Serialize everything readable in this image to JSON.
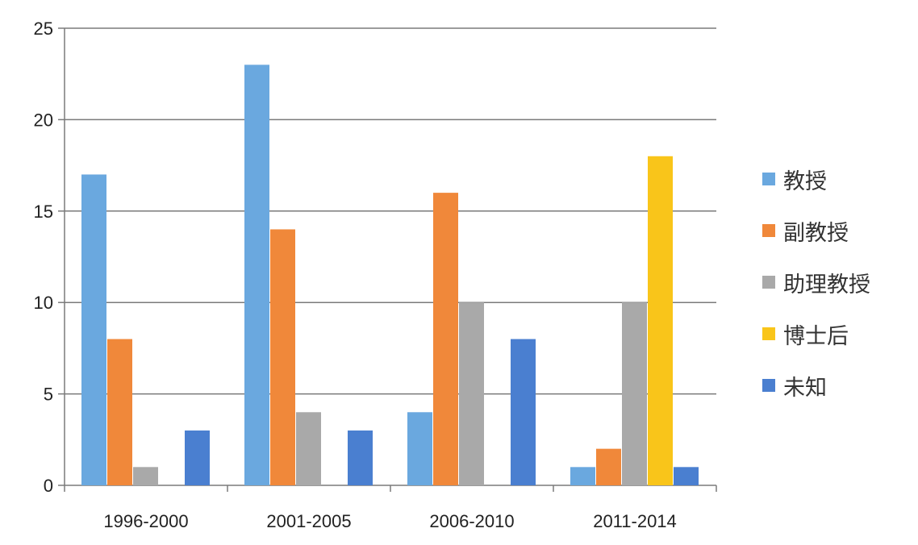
{
  "chart_data": {
    "type": "bar",
    "categories": [
      "1996-2000",
      "2001-2005",
      "2006-2010",
      "2011-2014"
    ],
    "series": [
      {
        "name": "教授",
        "color": "#6aa8df",
        "values": [
          17,
          23,
          4,
          1
        ]
      },
      {
        "name": "副教授",
        "color": "#f0883a",
        "values": [
          8,
          14,
          16,
          2
        ]
      },
      {
        "name": "助理教授",
        "color": "#a9a9a9",
        "values": [
          1,
          4,
          10,
          10
        ]
      },
      {
        "name": "博士后",
        "color": "#f9c51a",
        "values": [
          0,
          0,
          0,
          18
        ]
      },
      {
        "name": "未知",
        "color": "#4a7fd0",
        "values": [
          3,
          3,
          8,
          1
        ]
      }
    ],
    "ylim": [
      0,
      25
    ],
    "yticks": [
      0,
      5,
      10,
      15,
      20,
      25
    ],
    "title": "",
    "xlabel": "",
    "ylabel": "",
    "grid": true,
    "legend_position": "right"
  }
}
